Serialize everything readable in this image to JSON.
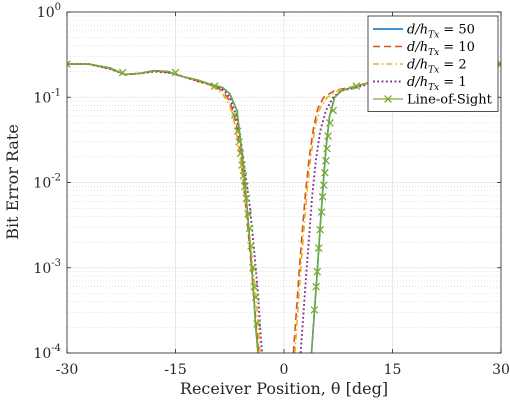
{
  "chart_data": {
    "type": "line",
    "xlabel": "Receiver Position, θ [deg]",
    "ylabel": "Bit Error Rate",
    "xlim": [
      -30,
      30
    ],
    "ylim": [
      0.0001,
      1
    ],
    "yscale": "log",
    "grid": true,
    "legend_position": "top-right",
    "xticks": [
      {
        "value": -30,
        "label": "-30"
      },
      {
        "value": -15,
        "label": "-15"
      },
      {
        "value": 0,
        "label": "0"
      },
      {
        "value": 15,
        "label": "15"
      },
      {
        "value": 30,
        "label": "30"
      }
    ],
    "yticks": [
      {
        "value": 0.0001,
        "base": "10",
        "exp": "-4"
      },
      {
        "value": 0.001,
        "base": "10",
        "exp": "-3"
      },
      {
        "value": 0.01,
        "base": "10",
        "exp": "-2"
      },
      {
        "value": 0.1,
        "base": "10",
        "exp": "-1"
      },
      {
        "value": 1,
        "base": "10",
        "exp": "0"
      }
    ],
    "series": [
      {
        "name": "d/h_Tx = 50",
        "legend": {
          "pre": "d/h",
          "sub": "Tx",
          "post": " = 50"
        },
        "color": "#0072BD",
        "dash": "",
        "width": 1.6,
        "marker": "",
        "segments": [
          [
            [
              -30,
              0.245
            ],
            [
              -27,
              0.245
            ],
            [
              -24,
              0.22
            ],
            [
              -22,
              0.185
            ],
            [
              -20,
              0.19
            ],
            [
              -18,
              0.205
            ],
            [
              -16,
              0.2
            ],
            [
              -14,
              0.175
            ],
            [
              -12,
              0.16
            ],
            [
              -10,
              0.14
            ],
            [
              -8.5,
              0.13
            ],
            [
              -7.5,
              0.11
            ],
            [
              -6.5,
              0.07
            ],
            [
              -6,
              0.03
            ],
            [
              -5.5,
              0.012
            ],
            [
              -5,
              0.004
            ],
            [
              -4.6,
              0.0015
            ],
            [
              -4.2,
              0.0005
            ],
            [
              -3.9,
              0.0002
            ],
            [
              -3.6,
              0.0001
            ]
          ],
          [
            [
              3.8,
              0.0001
            ],
            [
              4.2,
              0.0003
            ],
            [
              4.6,
              0.0009
            ],
            [
              5,
              0.003
            ],
            [
              5.4,
              0.009
            ],
            [
              5.8,
              0.025
            ],
            [
              6.3,
              0.06
            ],
            [
              7,
              0.1
            ],
            [
              8,
              0.12
            ],
            [
              10,
              0.135
            ],
            [
              12,
              0.15
            ],
            [
              15,
              0.175
            ],
            [
              17,
              0.19
            ],
            [
              19,
              0.195
            ],
            [
              21,
              0.2
            ],
            [
              24,
              0.22
            ],
            [
              27,
              0.24
            ],
            [
              30,
              0.245
            ]
          ]
        ]
      },
      {
        "name": "d/h_Tx = 10",
        "legend": {
          "pre": "d/h",
          "sub": "Tx",
          "post": " = 10"
        },
        "color": "#D95319",
        "dash": "7,4",
        "width": 1.6,
        "marker": "",
        "segments": [
          [
            [
              -30,
              0.245
            ],
            [
              -27,
              0.245
            ],
            [
              -24,
              0.215
            ],
            [
              -22,
              0.185
            ],
            [
              -20,
              0.19
            ],
            [
              -18,
              0.205
            ],
            [
              -16,
              0.195
            ],
            [
              -14,
              0.175
            ],
            [
              -12,
              0.155
            ],
            [
              -10,
              0.138
            ],
            [
              -8.5,
              0.12
            ],
            [
              -7.5,
              0.09
            ],
            [
              -6.6,
              0.05
            ],
            [
              -6,
              0.02
            ],
            [
              -5.5,
              0.008
            ],
            [
              -5,
              0.003
            ],
            [
              -4.5,
              0.001
            ],
            [
              -4,
              0.0003
            ],
            [
              -3.5,
              0.0001
            ]
          ],
          [
            [
              1.3,
              0.0001
            ],
            [
              1.7,
              0.0003
            ],
            [
              2.1,
              0.0009
            ],
            [
              2.5,
              0.0025
            ],
            [
              3,
              0.008
            ],
            [
              3.5,
              0.02
            ],
            [
              4.1,
              0.045
            ],
            [
              4.7,
              0.075
            ],
            [
              5.5,
              0.1
            ],
            [
              7,
              0.12
            ],
            [
              9,
              0.13
            ],
            [
              12,
              0.15
            ],
            [
              15,
              0.175
            ],
            [
              18,
              0.195
            ],
            [
              21,
              0.2
            ],
            [
              24,
              0.22
            ],
            [
              27,
              0.24
            ],
            [
              30,
              0.245
            ]
          ]
        ]
      },
      {
        "name": "d/h_Tx = 2",
        "legend": {
          "pre": "d/h",
          "sub": "Tx",
          "post": " = 2"
        },
        "color": "#EDB120",
        "dash": "6,3,1.5,3",
        "width": 1.6,
        "marker": "",
        "segments": [
          [
            [
              -30,
              0.245
            ],
            [
              -27,
              0.245
            ],
            [
              -24,
              0.215
            ],
            [
              -22,
              0.185
            ],
            [
              -20,
              0.19
            ],
            [
              -18,
              0.2
            ],
            [
              -16,
              0.195
            ],
            [
              -14,
              0.175
            ],
            [
              -12,
              0.155
            ],
            [
              -10,
              0.135
            ],
            [
              -8.5,
              0.11
            ],
            [
              -7.5,
              0.08
            ],
            [
              -6.7,
              0.045
            ],
            [
              -6,
              0.018
            ],
            [
              -5.4,
              0.007
            ],
            [
              -4.8,
              0.0025
            ],
            [
              -4.2,
              0.0009
            ],
            [
              -3.7,
              0.0003
            ],
            [
              -3.3,
              0.0001
            ]
          ],
          [
            [
              1.5,
              0.0001
            ],
            [
              1.9,
              0.0003
            ],
            [
              2.3,
              0.0009
            ],
            [
              2.7,
              0.0025
            ],
            [
              3.2,
              0.008
            ],
            [
              3.7,
              0.02
            ],
            [
              4.3,
              0.045
            ],
            [
              5,
              0.075
            ],
            [
              6,
              0.1
            ],
            [
              7.5,
              0.12
            ],
            [
              9,
              0.13
            ],
            [
              12,
              0.15
            ],
            [
              15,
              0.175
            ],
            [
              18,
              0.195
            ],
            [
              21,
              0.2
            ],
            [
              24,
              0.22
            ],
            [
              27,
              0.24
            ],
            [
              30,
              0.245
            ]
          ]
        ]
      },
      {
        "name": "d/h_Tx = 1",
        "legend": {
          "pre": "d/h",
          "sub": "Tx",
          "post": " = 1"
        },
        "color": "#7E2F8E",
        "dash": "1.8,2.5",
        "width": 1.9,
        "marker": "",
        "segments": [
          [
            [
              -30,
              0.245
            ],
            [
              -27,
              0.245
            ],
            [
              -24,
              0.215
            ],
            [
              -22,
              0.185
            ],
            [
              -20,
              0.19
            ],
            [
              -18,
              0.2
            ],
            [
              -16,
              0.195
            ],
            [
              -14,
              0.175
            ],
            [
              -12,
              0.155
            ],
            [
              -10,
              0.14
            ],
            [
              -8.5,
              0.125
            ],
            [
              -7.5,
              0.1
            ],
            [
              -6.6,
              0.06
            ],
            [
              -6,
              0.03
            ],
            [
              -5.3,
              0.012
            ],
            [
              -4.7,
              0.005
            ],
            [
              -4.1,
              0.0015
            ],
            [
              -3.6,
              0.0005
            ],
            [
              -3.2,
              0.00015
            ],
            [
              -3,
              0.0001
            ]
          ],
          [
            [
              2.3,
              0.0001
            ],
            [
              2.7,
              0.0003
            ],
            [
              3.1,
              0.0009
            ],
            [
              3.5,
              0.0025
            ],
            [
              3.9,
              0.007
            ],
            [
              4.4,
              0.018
            ],
            [
              5,
              0.04
            ],
            [
              5.8,
              0.07
            ],
            [
              6.8,
              0.1
            ],
            [
              8,
              0.12
            ],
            [
              10,
              0.13
            ],
            [
              12,
              0.145
            ],
            [
              15,
              0.17
            ],
            [
              18,
              0.19
            ],
            [
              21,
              0.2
            ],
            [
              24,
              0.22
            ],
            [
              27,
              0.24
            ],
            [
              30,
              0.245
            ]
          ]
        ]
      },
      {
        "name": "Line-of-Sight",
        "legend": {
          "pre": "Line-of-Sight",
          "sub": "",
          "post": ""
        },
        "color": "#77AC30",
        "dash": "",
        "width": 1.3,
        "marker": "x",
        "segments": [
          [
            [
              -30,
              0.245
            ],
            [
              -27,
              0.245
            ],
            [
              -24,
              0.22
            ],
            [
              -22,
              0.185
            ],
            [
              -20,
              0.19
            ],
            [
              -18,
              0.205
            ],
            [
              -16,
              0.2
            ],
            [
              -14,
              0.175
            ],
            [
              -12,
              0.16
            ],
            [
              -10,
              0.14
            ],
            [
              -8.5,
              0.13
            ],
            [
              -7.5,
              0.11
            ],
            [
              -6.5,
              0.07
            ],
            [
              -6,
              0.03
            ],
            [
              -5.5,
              0.012
            ],
            [
              -5,
              0.004
            ],
            [
              -4.6,
              0.0015
            ],
            [
              -4.2,
              0.0005
            ],
            [
              -3.9,
              0.0002
            ],
            [
              -3.6,
              0.0001
            ]
          ],
          [
            [
              3.8,
              0.0001
            ],
            [
              4.2,
              0.0003
            ],
            [
              4.6,
              0.0009
            ],
            [
              5,
              0.003
            ],
            [
              5.4,
              0.009
            ],
            [
              5.8,
              0.025
            ],
            [
              6.3,
              0.06
            ],
            [
              7,
              0.1
            ],
            [
              8,
              0.12
            ],
            [
              10,
              0.135
            ],
            [
              12,
              0.15
            ],
            [
              15,
              0.175
            ],
            [
              17,
              0.19
            ],
            [
              19,
              0.195
            ],
            [
              21,
              0.2
            ],
            [
              24,
              0.22
            ],
            [
              27,
              0.24
            ],
            [
              30,
              0.245
            ]
          ]
        ],
        "markers": [
          [
            -30,
            0.245
          ],
          [
            -22.3,
            0.195
          ],
          [
            -15,
            0.195
          ],
          [
            -9.6,
            0.135
          ],
          [
            -6.8,
            0.062
          ],
          [
            -6.4,
            0.04
          ],
          [
            -6.2,
            0.03
          ],
          [
            -6.0,
            0.022
          ],
          [
            -5.8,
            0.016
          ],
          [
            -5.6,
            0.012
          ],
          [
            -5.4,
            0.009
          ],
          [
            -5.2,
            0.0065
          ],
          [
            -4.95,
            0.0043
          ],
          [
            -4.75,
            0.0029
          ],
          [
            -4.55,
            0.0018
          ],
          [
            -4.3,
            0.001
          ],
          [
            -4.1,
            0.0006
          ],
          [
            -3.9,
            0.00045
          ],
          [
            -3.7,
            0.00022
          ],
          [
            4.2,
            0.00032
          ],
          [
            4.45,
            0.0006
          ],
          [
            4.6,
            0.0009
          ],
          [
            4.8,
            0.0017
          ],
          [
            5,
            0.0028
          ],
          [
            5.2,
            0.0045
          ],
          [
            5.35,
            0.0068
          ],
          [
            5.5,
            0.0093
          ],
          [
            5.65,
            0.013
          ],
          [
            5.8,
            0.018
          ],
          [
            5.95,
            0.025
          ],
          [
            6.1,
            0.035
          ],
          [
            6.35,
            0.05
          ],
          [
            6.8,
            0.07
          ],
          [
            10,
            0.135
          ],
          [
            17,
            0.19
          ],
          [
            24,
            0.225
          ],
          [
            30,
            0.245
          ]
        ]
      }
    ]
  }
}
